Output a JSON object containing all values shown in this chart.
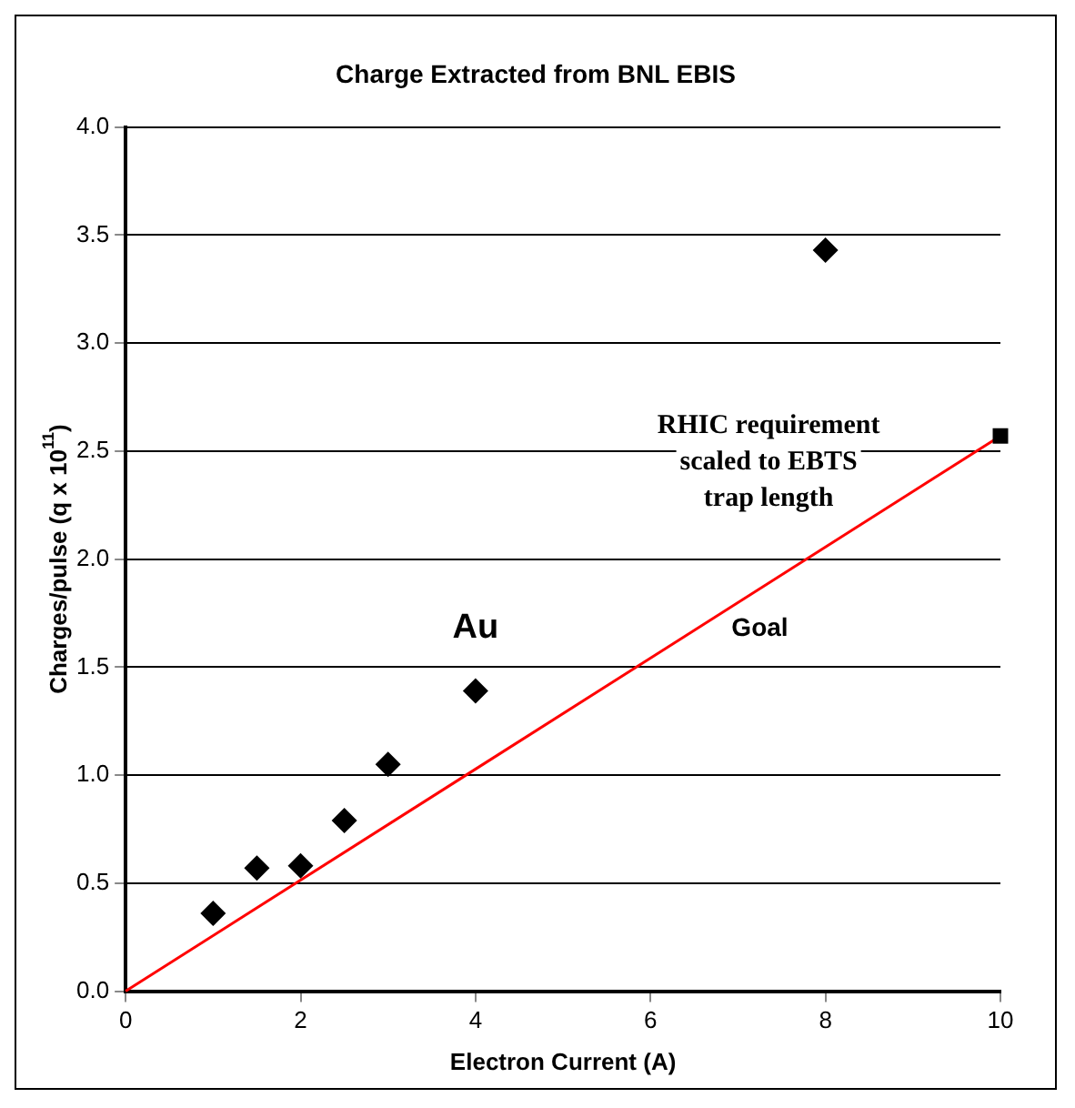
{
  "chart_data": {
    "type": "scatter",
    "title": "Charge Extracted from BNL EBIS",
    "xlabel": "Electron Current (A)",
    "ylabel": "Charges/pulse (q x 10$^{11}$)",
    "xlim": [
      0,
      10
    ],
    "xticks": [
      0,
      2,
      4,
      6,
      8,
      10
    ],
    "ylim": [
      0,
      4
    ],
    "yticks": [
      {
        "value": 0,
        "label": "0.0"
      },
      {
        "value": 0.5,
        "label": "0.5"
      },
      {
        "value": 1,
        "label": "1.0"
      },
      {
        "value": 1.5,
        "label": "1.5"
      },
      {
        "value": 2,
        "label": "2.0"
      },
      {
        "value": 2.5,
        "label": "2.5"
      },
      {
        "value": 3,
        "label": "3.0"
      },
      {
        "value": 3.5,
        "label": "3.5"
      },
      {
        "value": 4,
        "label": "4.0"
      }
    ],
    "grid": "y",
    "legend": false,
    "series": [
      {
        "color": "#000000",
        "marker": "diamond",
        "x": [
          1,
          1.5,
          2,
          2.5,
          3,
          4,
          8
        ],
        "values": [
          0.36,
          0.57,
          0.58,
          0.79,
          1.05,
          1.39,
          3.43
        ]
      },
      {
        "type": "line",
        "color": "#ff0000",
        "marker": "none",
        "x": [
          0,
          10
        ],
        "values": [
          0,
          2.57
        ]
      },
      {
        "color": "#000000",
        "marker": "square",
        "x": [
          10
        ],
        "values": [
          2.57
        ]
      }
    ],
    "annotations": [
      "Au",
      "Goal",
      "RHIC requirement scaled to EBTS trap length"
    ]
  }
}
